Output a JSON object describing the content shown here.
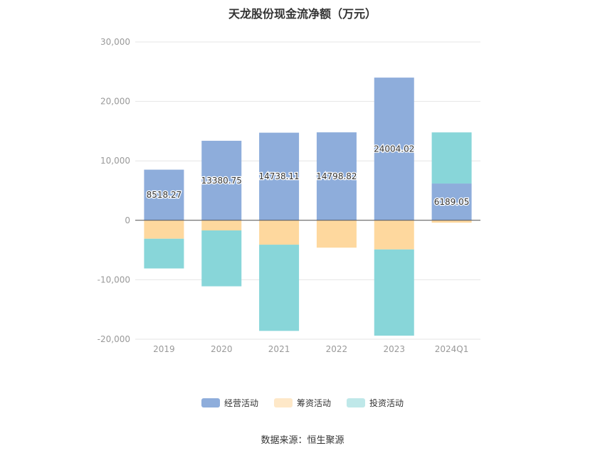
{
  "chart_data": {
    "type": "bar",
    "stacked": true,
    "title": "天龙股份现金流净额（万元）",
    "categories": [
      "2019",
      "2020",
      "2021",
      "2022",
      "2023",
      "2024Q1"
    ],
    "ylim": [
      -20000,
      30000
    ],
    "yticks": [
      30000,
      20000,
      10000,
      0,
      -10000,
      -20000
    ],
    "ytick_labels": [
      "30,000",
      "20,000",
      "10,000",
      "0",
      "-10,000",
      "-20,000"
    ],
    "grid": true,
    "legend_position": "bottom",
    "series": [
      {
        "name": "经营活动",
        "color": "#8eaddb",
        "values": [
          8518.27,
          13380.75,
          14738.11,
          14798.82,
          24004.02,
          6189.05
        ],
        "labels": [
          "8518.27",
          "13380.75",
          "14738.11",
          "14798.82",
          "24004.02",
          "6189.05"
        ]
      },
      {
        "name": "筹资活动",
        "color": "#fed89e",
        "values": [
          -3100,
          -1700,
          -4100,
          -4600,
          -4900,
          -400
        ]
      },
      {
        "name": "投资活动",
        "color": "#88d6d9",
        "values": [
          -5000,
          -9400,
          -14500,
          0,
          -14500,
          8600
        ]
      }
    ]
  },
  "legend_swatch_colors": [
    "#8eaddb",
    "#fee8c8",
    "#bfe8e9"
  ],
  "source": "数据来源：恒生聚源"
}
